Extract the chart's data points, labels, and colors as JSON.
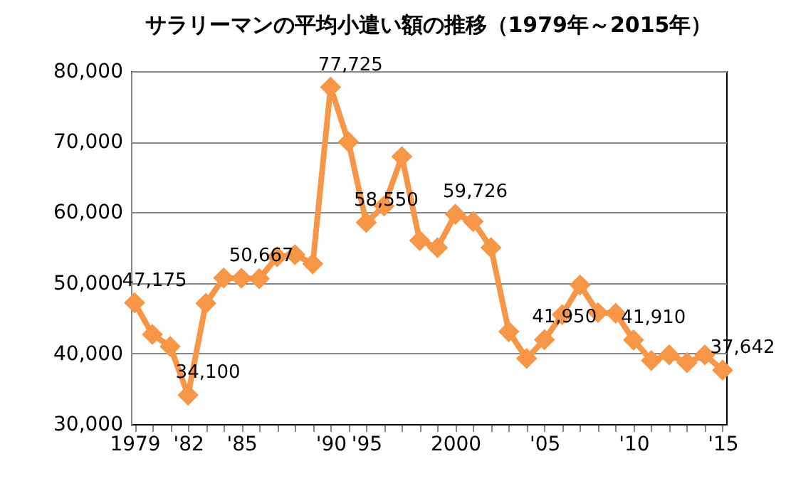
{
  "chart_data": {
    "type": "line",
    "title": "サラリーマンの平均小遣い額の推移（1979年～2015年）",
    "categories": [
      "1979",
      null,
      null,
      "'82",
      null,
      null,
      "'85",
      null,
      null,
      null,
      null,
      "'90",
      null,
      "'95",
      null,
      null,
      null,
      null,
      "2000",
      null,
      null,
      null,
      null,
      "'05",
      null,
      null,
      null,
      null,
      "'10",
      null,
      null,
      null,
      null,
      "'15"
    ],
    "series": [
      {
        "color": "#f79646",
        "values": [
          47175,
          42700,
          41000,
          34100,
          47100,
          50700,
          50667,
          50600,
          53700,
          54000,
          52700,
          77725,
          70000,
          58550,
          60900,
          67900,
          56000,
          55000,
          59726,
          58700,
          55000,
          43100,
          39300,
          41950,
          45500,
          49700,
          45800,
          45700,
          41910,
          39000,
          39800,
          38700,
          39800,
          37642
        ],
        "value_labels": [
          "47,175",
          null,
          null,
          "34,100",
          null,
          null,
          "50,667",
          null,
          null,
          null,
          null,
          "77,725",
          null,
          "58,550",
          null,
          null,
          null,
          null,
          "59,726",
          null,
          null,
          null,
          null,
          "41,950",
          null,
          null,
          null,
          null,
          "41,910",
          null,
          null,
          null,
          null,
          "37,642"
        ]
      }
    ],
    "ylim": [
      30000,
      80000
    ],
    "yticks": [
      {
        "value": 30000,
        "label": "30,000"
      },
      {
        "value": 40000,
        "label": "40,000"
      },
      {
        "value": 50000,
        "label": "50,000"
      },
      {
        "value": 60000,
        "label": "60,000"
      },
      {
        "value": 70000,
        "label": "70,000"
      },
      {
        "value": 80000,
        "label": "80,000"
      }
    ],
    "grid": "y",
    "legend": false,
    "marker": "diamond",
    "line_style": "solid"
  }
}
